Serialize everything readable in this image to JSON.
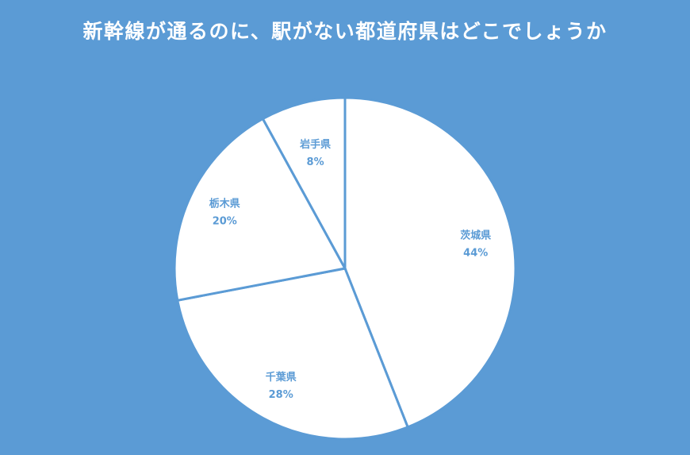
{
  "chart_data": {
    "type": "pie",
    "title": "新幹線が通るのに、駅がない都道府県はどこでしょうか",
    "categories": [
      "茨城県",
      "千葉県",
      "栃木県",
      "岩手県"
    ],
    "values": [
      44,
      28,
      20,
      8
    ],
    "labels": [
      "44%",
      "28%",
      "20%",
      "8%"
    ],
    "start": "top",
    "direction": "clockwise",
    "colors": {
      "background": "#5b9bd5",
      "slice_fill": "#ffffff",
      "slice_stroke": "#5b9bd5",
      "label": "#5b9bd5",
      "title": "#ffffff"
    }
  }
}
